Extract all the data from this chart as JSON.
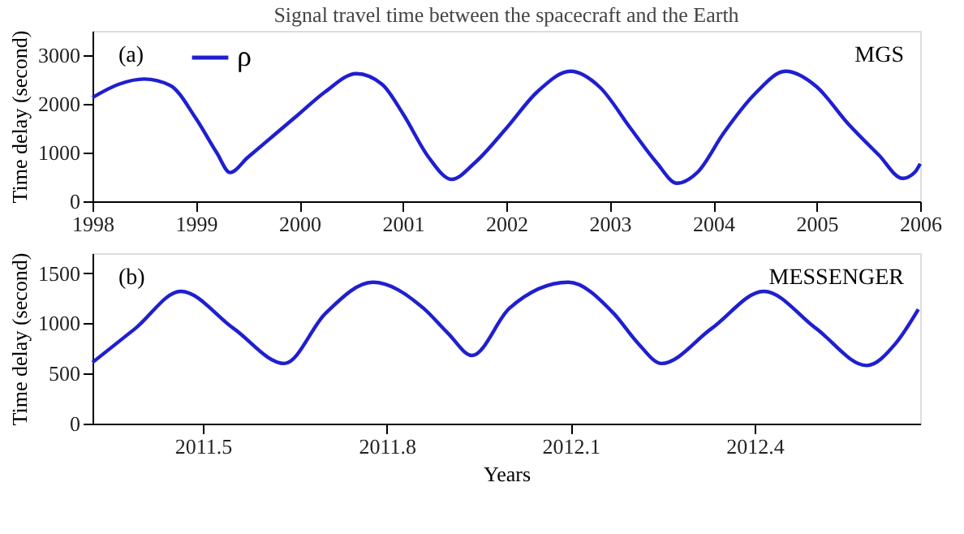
{
  "chart_data": [
    {
      "type": "line",
      "title": "Signal travel time between the spacecraft and the Earth",
      "ylabel": "Time delay (second)",
      "annotations": [
        "(a)",
        "MGS"
      ],
      "legend": "top left",
      "grid": false,
      "xlim": [
        1998,
        2006
      ],
      "xticks": [
        1998,
        1999,
        2000,
        2001,
        2002,
        2003,
        2004,
        2005,
        2006
      ],
      "ylim": [
        0,
        3500
      ],
      "yticks": [
        0,
        1000,
        2000,
        3000
      ],
      "x": [
        1998.0,
        1998.25,
        1998.5,
        1998.75,
        1999.0,
        1999.2,
        1999.33,
        1999.5,
        1999.75,
        2000.0,
        2000.25,
        2000.55,
        2000.8,
        2001.0,
        2001.25,
        2001.47,
        2001.7,
        2002.0,
        2002.3,
        2002.62,
        2002.9,
        2003.2,
        2003.45,
        2003.65,
        2003.85,
        2004.1,
        2004.4,
        2004.7,
        2005.0,
        2005.3,
        2005.6,
        2005.83,
        2005.95,
        2006.0
      ],
      "series": [
        {
          "name": "ρ",
          "color": "#1f1fd0",
          "values": [
            2130,
            2400,
            2510,
            2380,
            1700,
            1000,
            590,
            900,
            1350,
            1800,
            2250,
            2620,
            2400,
            1800,
            900,
            450,
            800,
            1500,
            2250,
            2670,
            2350,
            1500,
            800,
            370,
            600,
            1400,
            2200,
            2670,
            2350,
            1600,
            950,
            470,
            600,
            770
          ]
        }
      ]
    },
    {
      "type": "line",
      "xlabel": "Years",
      "ylabel": "Time delay (second)",
      "annotations": [
        "(b)",
        "MESSENGER"
      ],
      "grid": false,
      "xlim": [
        2011.32,
        2012.67
      ],
      "xticks": [
        2011.5,
        2011.8,
        2012.1,
        2012.4
      ],
      "ylim": [
        0,
        1700
      ],
      "yticks": [
        0,
        500,
        1000,
        1500
      ],
      "x": [
        2011.32,
        2011.39,
        2011.464,
        2011.55,
        2011.633,
        2011.7,
        2011.777,
        2011.86,
        2011.9,
        2011.939,
        2012.0,
        2012.096,
        2012.17,
        2012.21,
        2012.248,
        2012.33,
        2012.415,
        2012.5,
        2012.583,
        2012.63,
        2012.667
      ],
      "series": [
        {
          "color": "#1f1fd0",
          "values": [
            610,
            950,
            1320,
            950,
            600,
            1100,
            1410,
            1150,
            900,
            680,
            1150,
            1410,
            1100,
            800,
            600,
            950,
            1320,
            950,
            580,
            800,
            1140
          ]
        }
      ]
    }
  ]
}
